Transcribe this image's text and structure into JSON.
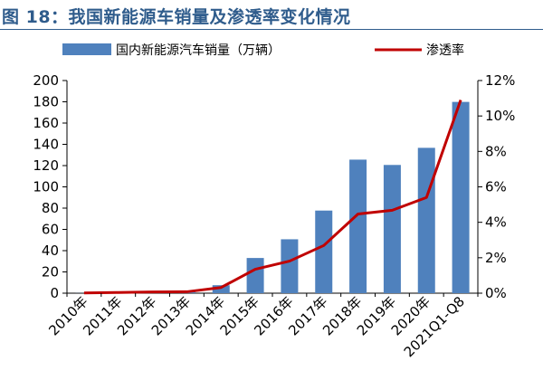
{
  "title": "图 18：我国新能源车销量及渗透率变化情况",
  "colors": {
    "bar": "#4f81bd",
    "line": "#c00000",
    "title": "#2f5c8c"
  },
  "chart_data": {
    "type": "bar+line",
    "categories": [
      "2010年",
      "2011年",
      "2012年",
      "2013年",
      "2014年",
      "2015年",
      "2016年",
      "2017年",
      "2018年",
      "2019年",
      "2020年",
      "2021Q1-Q8"
    ],
    "series": [
      {
        "name": "国内新能源汽车销量（万辆）",
        "type": "bar",
        "axis": "left",
        "values": [
          0.1,
          0.8,
          1.3,
          1.8,
          7.5,
          33.1,
          50.7,
          77.7,
          125.6,
          120.6,
          136.7,
          179.9
        ]
      },
      {
        "name": "渗透率",
        "type": "line",
        "axis": "right",
        "values": [
          0.01,
          0.04,
          0.07,
          0.08,
          0.32,
          1.35,
          1.81,
          2.69,
          4.47,
          4.68,
          5.4,
          10.9
        ]
      }
    ],
    "y_left": {
      "min": 0,
      "max": 200,
      "step": 20,
      "ticks": [
        "0",
        "20",
        "40",
        "60",
        "80",
        "100",
        "120",
        "140",
        "160",
        "180",
        "200"
      ]
    },
    "y_right": {
      "min": 0,
      "max": 12,
      "step": 2,
      "ticks": [
        "0%",
        "2%",
        "4%",
        "6%",
        "8%",
        "10%",
        "12%"
      ]
    },
    "legend_position": "top",
    "grid": false
  }
}
